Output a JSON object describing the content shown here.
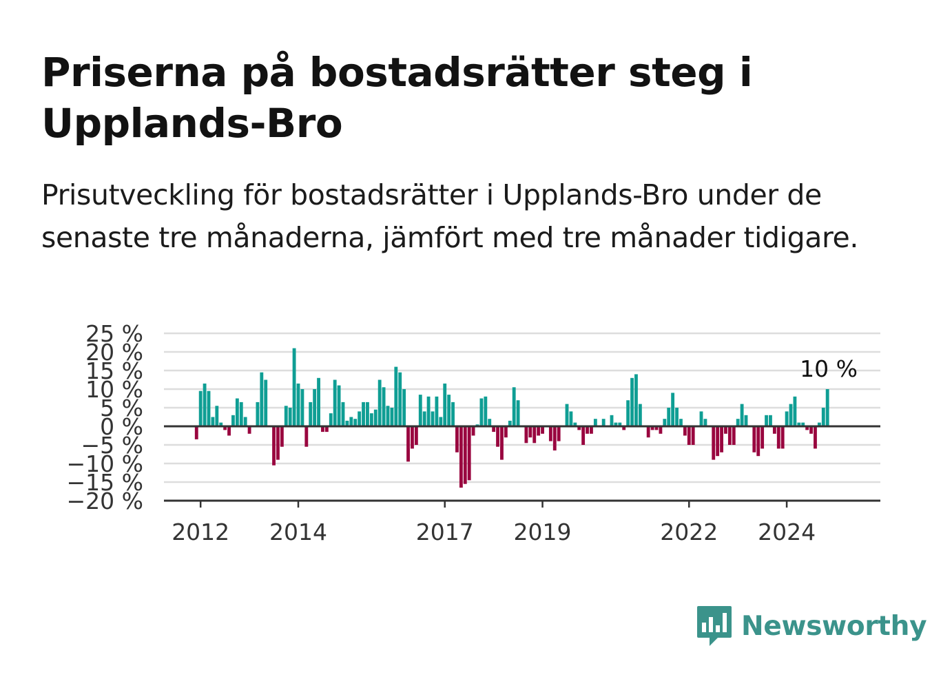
{
  "title": "Priserna på bostadsrätter steg i Upplands-Bro",
  "subtitle": "Prisutveckling för bostadsrätter i Upplands-Bro under de senaste tre månaderna, jämfört med tre månader tidigare.",
  "brand": {
    "name": "Newsworthy",
    "color": "#3b938b",
    "icon": "newsworthy-bar-chart-icon"
  },
  "colors": {
    "positive": "#0f9e94",
    "negative": "#99063f",
    "grid": "#dddddd",
    "axis": "#333333"
  },
  "chart_data": {
    "type": "bar",
    "title": "",
    "xlabel": "",
    "ylabel": "",
    "ylim": [
      -20,
      25
    ],
    "yticks": [
      25,
      20,
      15,
      10,
      5,
      0,
      -5,
      -10,
      -15,
      -20
    ],
    "ytick_labels": [
      "25 %",
      "20 %",
      "15 %",
      "10 %",
      "5 %",
      "0 %",
      "−5 %",
      "−10 %",
      "−15 %",
      "−20 %"
    ],
    "xlim": [
      "2011-04",
      "2025-12"
    ],
    "xticks": [
      "2012-01",
      "2014-01",
      "2017-01",
      "2019-01",
      "2022-01",
      "2024-01"
    ],
    "xtick_labels": [
      "2012",
      "2014",
      "2017",
      "2019",
      "2022",
      "2024"
    ],
    "grid": true,
    "start_month": "2011-12",
    "values": [
      -3.5,
      9.5,
      11.5,
      9.5,
      2.5,
      5.5,
      1,
      -1,
      -2.5,
      3,
      7.5,
      6.5,
      2.5,
      -2,
      0,
      6.5,
      14.5,
      12.5,
      0,
      -10.5,
      -9,
      -5.5,
      5.5,
      5,
      21,
      11.5,
      10,
      -5.5,
      6.5,
      10,
      13,
      -1.5,
      -1.5,
      3.5,
      12.5,
      11,
      6.5,
      1.5,
      2.5,
      2,
      4,
      6.5,
      6.5,
      3.5,
      4.5,
      12.5,
      10.5,
      5.5,
      5,
      16,
      14.5,
      10,
      -9.5,
      -6,
      -5,
      8.5,
      4,
      8,
      4,
      8,
      2.5,
      11.5,
      8.5,
      6.5,
      -7,
      -16.5,
      -15.5,
      -14.5,
      -2.5,
      0.5,
      7.5,
      8,
      2,
      -1.5,
      -5.5,
      -9,
      -3,
      1.5,
      10.5,
      7,
      0,
      -4.5,
      -3,
      -4.5,
      -2.5,
      -2,
      0,
      -4,
      -6.5,
      -4,
      0,
      6,
      4,
      1,
      -1,
      -5,
      -2,
      -2,
      2,
      0,
      2,
      0,
      3,
      1,
      1,
      -1,
      7,
      13,
      14,
      6,
      0,
      -3,
      -1,
      -1,
      -2,
      2,
      5,
      9,
      5,
      2,
      -2.5,
      -5,
      -5,
      0,
      4,
      2,
      0,
      -9,
      -8,
      -7,
      -2,
      -5,
      -5,
      2,
      6,
      3,
      0,
      -7,
      -8,
      -6,
      3,
      3,
      -2,
      -6,
      -6,
      4,
      6,
      8,
      1,
      1,
      -1,
      -2,
      -6,
      1,
      5,
      10
    ],
    "annotations": [
      {
        "text": "10 %",
        "target": "last"
      }
    ]
  }
}
